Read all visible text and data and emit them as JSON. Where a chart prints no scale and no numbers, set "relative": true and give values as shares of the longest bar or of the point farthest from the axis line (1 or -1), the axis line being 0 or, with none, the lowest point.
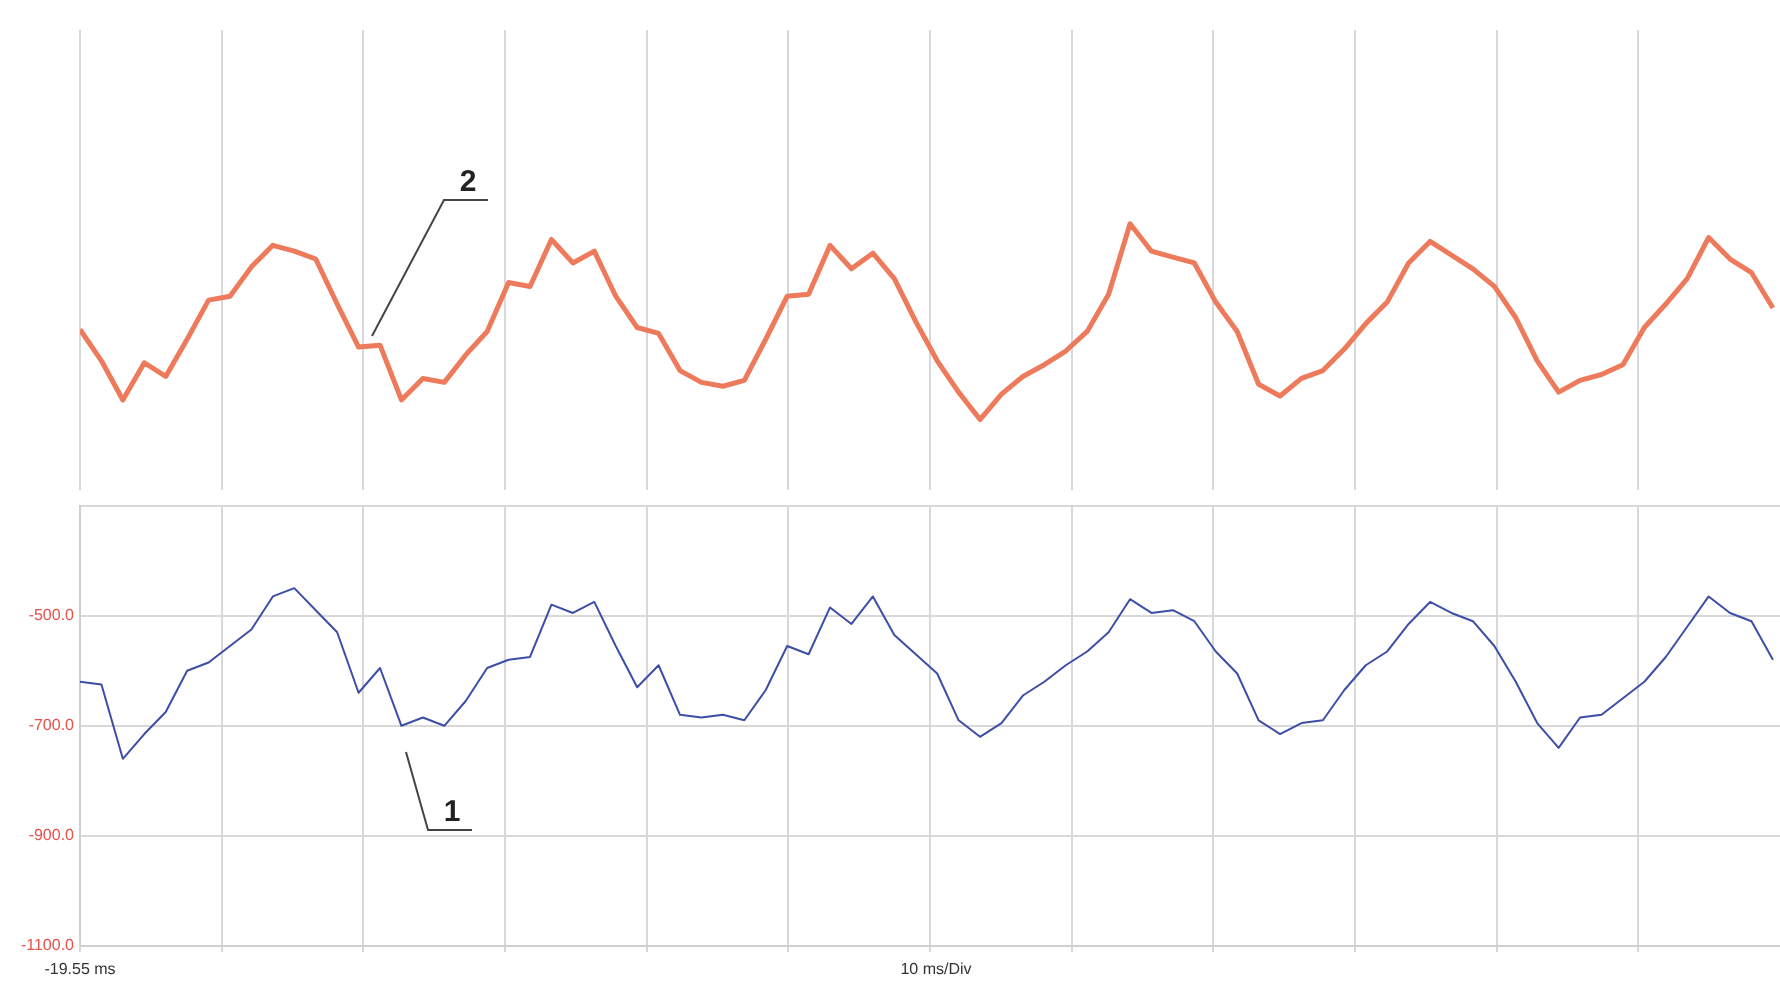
{
  "chart_data": [
    {
      "type": "line",
      "relative": true,
      "grid": "x",
      "tick_labels": false,
      "categories": [
        null,
        null,
        null,
        null,
        null,
        null,
        null,
        null,
        null,
        null,
        null,
        null,
        null,
        null,
        null,
        null,
        null,
        null,
        null,
        null,
        null,
        null,
        null,
        null,
        null,
        null,
        null,
        null,
        null,
        null,
        null,
        null,
        null,
        null,
        null,
        null,
        null,
        null,
        null,
        null,
        null,
        null,
        null,
        null,
        null,
        null,
        null,
        null,
        null,
        null,
        null,
        null,
        null,
        null,
        null,
        null,
        null,
        null,
        null,
        null,
        null,
        null,
        null,
        null,
        null,
        null,
        null,
        null,
        null,
        null,
        null,
        null,
        null,
        null,
        null,
        null,
        null,
        null,
        null,
        null
      ],
      "series": [
        {
          "color": "#ee7a5c",
          "values": [
            0.46,
            0.3,
            0.1,
            0.29,
            0.22,
            0.41,
            0.61,
            0.63,
            0.78,
            0.89,
            0.86,
            0.82,
            0.59,
            0.37,
            0.38,
            0.1,
            0.21,
            0.19,
            0.33,
            0.45,
            0.7,
            0.68,
            0.92,
            0.8,
            0.86,
            0.63,
            0.47,
            0.44,
            0.25,
            0.19,
            0.17,
            0.2,
            0.41,
            0.63,
            0.64,
            0.89,
            0.77,
            0.85,
            0.72,
            0.5,
            0.3,
            0.14,
            0,
            0.13,
            0.22,
            0.28,
            0.35,
            0.45,
            0.64,
            1,
            0.86,
            0.83,
            0.8,
            0.6,
            0.45,
            0.18,
            0.12,
            0.21,
            0.25,
            0.36,
            0.49,
            0.6,
            0.8,
            0.91,
            0.84,
            0.77,
            0.68,
            0.52,
            0.3,
            0.14,
            0.2,
            0.23,
            0.28,
            0.47,
            0.59,
            0.72,
            0.93,
            0.82,
            0.75,
            0.57
          ]
        }
      ],
      "annotations": [
        "2"
      ]
    },
    {
      "type": "line",
      "grid": true,
      "tick_labels": "y",
      "categories": [
        null,
        null,
        null,
        null,
        null,
        null,
        null,
        null,
        null,
        null,
        null,
        null,
        null,
        null,
        null,
        null,
        null,
        null,
        null,
        null,
        null,
        null,
        null,
        null,
        null,
        null,
        null,
        null,
        null,
        null,
        null,
        null,
        null,
        null,
        null,
        null,
        null,
        null,
        null,
        null,
        null,
        null,
        null,
        null,
        null,
        null,
        null,
        null,
        null,
        null,
        null,
        null,
        null,
        null,
        null,
        null,
        null,
        null,
        null,
        null,
        null,
        null,
        null,
        null,
        null,
        null,
        null,
        null,
        null,
        null,
        null,
        null,
        null,
        null,
        null,
        null,
        null,
        null,
        null,
        null
      ],
      "series": [
        {
          "color": "#3c4ea6",
          "values": [
            -620,
            -625,
            -760,
            -715,
            -675,
            -600,
            -585,
            -555,
            -525,
            -465,
            -450,
            -490,
            -530,
            -640,
            -595,
            -700,
            -685,
            -700,
            -655,
            -595,
            -580,
            -575,
            -480,
            -495,
            -475,
            -555,
            -630,
            -590,
            -680,
            -685,
            -680,
            -690,
            -635,
            -555,
            -570,
            -485,
            -515,
            -465,
            -535,
            -570,
            -605,
            -690,
            -720,
            -695,
            -645,
            -620,
            -590,
            -565,
            -530,
            -470,
            -495,
            -490,
            -510,
            -565,
            -605,
            -690,
            -715,
            -695,
            -690,
            -635,
            -590,
            -565,
            -515,
            -475,
            -495,
            -510,
            -555,
            -620,
            -695,
            -740,
            -685,
            -680,
            -650,
            -620,
            -575,
            -520,
            -465,
            -495,
            -510,
            -580
          ]
        }
      ],
      "ylim": [
        -1100,
        -300
      ],
      "yticks": [
        {
          "value": -1100,
          "label": "-1100.0"
        },
        {
          "value": -900,
          "label": "-900.0"
        },
        {
          "value": -700,
          "label": "-700.0"
        },
        {
          "value": -500,
          "label": "-500.0"
        },
        {
          "value": -300,
          "label": null
        }
      ],
      "annotations": [
        "1",
        "-19.55 ms",
        "10 ms/Div"
      ]
    }
  ]
}
